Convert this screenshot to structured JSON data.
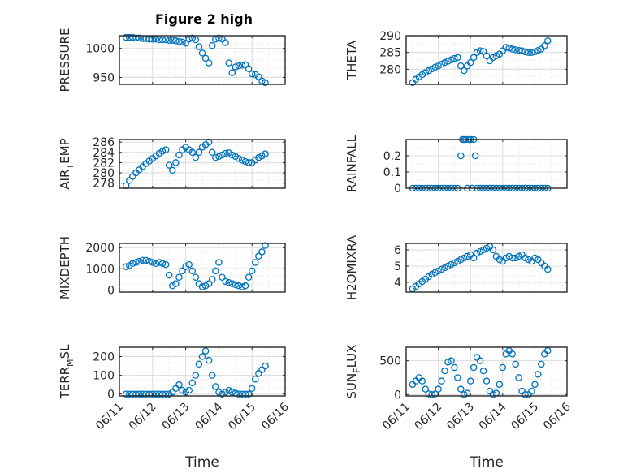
{
  "figure": {
    "title": "Figure 2 high"
  },
  "colors": {
    "marker": "#0072BD",
    "axis": "#262626",
    "grid": "#dcdcdc"
  },
  "chart_data": [
    {
      "id": "pressure",
      "type": "scatter",
      "title": "Figure 2 high",
      "ylabel": "PRESSURE",
      "xlabel": "",
      "xlim": [
        0,
        5
      ],
      "ylim": [
        938,
        1022
      ],
      "yticks": [
        950,
        1000
      ],
      "xticks": [
        0,
        1,
        2,
        3,
        4,
        5
      ],
      "xticklabels": [],
      "grid": true,
      "marker": "circle",
      "x": [
        0.2,
        0.3,
        0.4,
        0.5,
        0.6,
        0.7,
        0.8,
        0.9,
        1.0,
        1.1,
        1.2,
        1.3,
        1.4,
        1.5,
        1.6,
        1.7,
        1.8,
        1.9,
        2.0,
        2.1,
        2.2,
        2.3,
        2.4,
        2.5,
        2.6,
        2.7,
        2.8,
        2.9,
        3.0,
        3.1,
        3.2,
        3.3,
        3.4,
        3.5,
        3.6,
        3.7,
        3.8,
        3.9,
        4.0,
        4.1,
        4.2,
        4.3,
        4.4
      ],
      "y": [
        1019,
        1019,
        1019,
        1018,
        1018,
        1017,
        1017,
        1016,
        1016,
        1016,
        1015,
        1015,
        1015,
        1014,
        1014,
        1013,
        1012,
        1011,
        1009,
        1016,
        1018,
        1015,
        1003,
        992,
        983,
        975,
        1005,
        1016,
        1018,
        1016,
        1010,
        975,
        958,
        968,
        970,
        971,
        972,
        965,
        956,
        955,
        951,
        944,
        941
      ]
    },
    {
      "id": "theta",
      "type": "scatter",
      "ylabel": "THETA",
      "xlabel": "",
      "xlim": [
        0,
        5
      ],
      "ylim": [
        275.5,
        290
      ],
      "yticks": [
        280,
        285,
        290
      ],
      "xticks": [
        0,
        1,
        2,
        3,
        4,
        5
      ],
      "xticklabels": [],
      "grid": true,
      "marker": "circle",
      "x": [
        0.2,
        0.3,
        0.4,
        0.5,
        0.6,
        0.7,
        0.8,
        0.9,
        1.0,
        1.1,
        1.2,
        1.3,
        1.4,
        1.5,
        1.6,
        1.7,
        1.8,
        1.9,
        2.0,
        2.1,
        2.2,
        2.3,
        2.4,
        2.5,
        2.6,
        2.7,
        2.8,
        2.9,
        3.0,
        3.1,
        3.2,
        3.3,
        3.4,
        3.5,
        3.6,
        3.7,
        3.8,
        3.9,
        4.0,
        4.1,
        4.2,
        4.3,
        4.4
      ],
      "y": [
        276,
        277,
        277.7,
        278.4,
        279,
        279.6,
        280.1,
        280.6,
        281,
        281.5,
        282,
        282.4,
        282.8,
        283.2,
        283.5,
        281,
        279.6,
        281,
        282,
        283.5,
        285,
        285.5,
        285.3,
        284,
        282.5,
        283.5,
        284,
        284.5,
        285.5,
        286.5,
        286.3,
        286,
        285.8,
        285.6,
        285.5,
        285.2,
        285,
        285,
        285.2,
        285.6,
        286,
        287,
        288.5
      ]
    },
    {
      "id": "air_temp",
      "type": "scatter",
      "ylabel": "AIR_TEMP",
      "xlabel": "",
      "xlim": [
        0,
        5
      ],
      "ylim": [
        277,
        286.5
      ],
      "yticks": [
        278,
        280,
        282,
        284,
        286
      ],
      "xticks": [
        0,
        1,
        2,
        3,
        4,
        5
      ],
      "xticklabels": [],
      "grid": true,
      "marker": "circle",
      "x": [
        0.2,
        0.3,
        0.4,
        0.5,
        0.6,
        0.7,
        0.8,
        0.9,
        1.0,
        1.1,
        1.2,
        1.3,
        1.4,
        1.5,
        1.6,
        1.7,
        1.8,
        1.9,
        2.0,
        2.1,
        2.2,
        2.3,
        2.4,
        2.5,
        2.6,
        2.7,
        2.8,
        2.9,
        3.0,
        3.1,
        3.2,
        3.3,
        3.4,
        3.5,
        3.6,
        3.7,
        3.8,
        3.9,
        4.0,
        4.1,
        4.2,
        4.3,
        4.4
      ],
      "y": [
        277.5,
        278.5,
        279.3,
        280,
        280.6,
        281.2,
        281.8,
        282.3,
        282.8,
        283.3,
        283.8,
        284.2,
        284.5,
        281.5,
        280.5,
        282,
        283.5,
        284.5,
        285,
        284.5,
        284,
        283,
        284,
        285,
        285.5,
        286,
        284,
        283,
        283.2,
        283.5,
        283.8,
        283.9,
        283.5,
        283.2,
        282.8,
        282.5,
        282.2,
        282,
        282,
        282.5,
        283,
        283.3,
        283.7
      ]
    },
    {
      "id": "rainfall",
      "type": "scatter",
      "ylabel": "RAINFALL",
      "xlabel": "",
      "xlim": [
        0,
        5
      ],
      "ylim": [
        0,
        0.3
      ],
      "yticks": [
        0,
        0.1,
        0.2
      ],
      "xticks": [
        0,
        1,
        2,
        3,
        4,
        5
      ],
      "xticklabels": [],
      "grid": true,
      "marker": "circle",
      "x": [
        0.2,
        0.3,
        0.4,
        0.5,
        0.6,
        0.7,
        0.8,
        0.9,
        1.0,
        1.1,
        1.2,
        1.3,
        1.4,
        1.5,
        1.6,
        1.7,
        1.75,
        1.8,
        1.85,
        1.9,
        1.95,
        2.0,
        2.05,
        2.1,
        2.15,
        2.2,
        2.3,
        2.4,
        2.5,
        2.6,
        2.7,
        2.8,
        2.9,
        3.0,
        3.1,
        3.2,
        3.3,
        3.4,
        3.5,
        3.6,
        3.7,
        3.8,
        3.9,
        4.0,
        4.1,
        4.2,
        4.3,
        4.4
      ],
      "y": [
        0,
        0,
        0,
        0,
        0,
        0,
        0,
        0,
        0,
        0,
        0,
        0,
        0,
        0,
        0,
        0.2,
        0.3,
        0.3,
        0.3,
        0,
        0.3,
        0.3,
        0,
        0.3,
        0.2,
        0,
        0,
        0,
        0,
        0,
        0,
        0,
        0,
        0,
        0,
        0,
        0,
        0,
        0,
        0,
        0,
        0,
        0,
        0,
        0,
        0,
        0,
        0
      ]
    },
    {
      "id": "mixdepth",
      "type": "scatter",
      "ylabel": "MIXDEPTH",
      "xlabel": "",
      "xlim": [
        0,
        5
      ],
      "ylim": [
        -100,
        2200
      ],
      "yticks": [
        0,
        1000,
        2000
      ],
      "xticks": [
        0,
        1,
        2,
        3,
        4,
        5
      ],
      "xticklabels": [],
      "grid": true,
      "marker": "circle",
      "x": [
        0.2,
        0.3,
        0.4,
        0.5,
        0.6,
        0.7,
        0.8,
        0.9,
        1.0,
        1.1,
        1.2,
        1.3,
        1.4,
        1.5,
        1.6,
        1.7,
        1.8,
        1.9,
        2.0,
        2.1,
        2.2,
        2.3,
        2.4,
        2.5,
        2.6,
        2.7,
        2.8,
        2.9,
        3.0,
        3.1,
        3.2,
        3.3,
        3.4,
        3.5,
        3.6,
        3.7,
        3.8,
        3.9,
        4.0,
        4.1,
        4.2,
        4.3,
        4.4
      ],
      "y": [
        1100,
        1150,
        1250,
        1300,
        1350,
        1400,
        1400,
        1350,
        1300,
        1250,
        1300,
        1250,
        1200,
        700,
        200,
        300,
        600,
        900,
        1100,
        1200,
        900,
        600,
        300,
        150,
        200,
        300,
        500,
        900,
        1300,
        600,
        400,
        350,
        300,
        250,
        200,
        150,
        200,
        600,
        900,
        1300,
        1600,
        1800,
        2100
      ]
    },
    {
      "id": "h2omixra",
      "type": "scatter",
      "ylabel": "H2OMIXRA",
      "xlabel": "",
      "xlim": [
        0,
        5
      ],
      "ylim": [
        3.4,
        6.4
      ],
      "yticks": [
        4,
        5,
        6
      ],
      "xticks": [
        0,
        1,
        2,
        3,
        4,
        5
      ],
      "xticklabels": [],
      "grid": true,
      "marker": "circle",
      "x": [
        0.2,
        0.3,
        0.4,
        0.5,
        0.6,
        0.7,
        0.8,
        0.9,
        1.0,
        1.1,
        1.2,
        1.3,
        1.4,
        1.5,
        1.6,
        1.7,
        1.8,
        1.9,
        2.0,
        2.1,
        2.2,
        2.3,
        2.4,
        2.5,
        2.6,
        2.7,
        2.8,
        2.9,
        3.0,
        3.1,
        3.2,
        3.3,
        3.4,
        3.5,
        3.6,
        3.7,
        3.8,
        3.9,
        4.0,
        4.1,
        4.2,
        4.3,
        4.4
      ],
      "y": [
        3.6,
        3.75,
        3.9,
        4.05,
        4.2,
        4.35,
        4.5,
        4.6,
        4.7,
        4.8,
        4.9,
        5.0,
        5.1,
        5.2,
        5.3,
        5.4,
        5.5,
        5.6,
        5.7,
        5.5,
        5.8,
        5.9,
        6.0,
        6.1,
        6.2,
        6.0,
        5.6,
        5.4,
        5.3,
        5.5,
        5.6,
        5.5,
        5.5,
        5.6,
        5.7,
        5.5,
        5.4,
        5.3,
        5.5,
        5.4,
        5.2,
        5.0,
        4.8
      ]
    },
    {
      "id": "terr_msl",
      "type": "scatter",
      "ylabel": "TERR_MSL",
      "xlabel": "Time",
      "xlim": [
        0,
        5
      ],
      "ylim": [
        -10,
        250
      ],
      "yticks": [
        0,
        100,
        200
      ],
      "xticks": [
        0,
        1,
        2,
        3,
        4,
        5
      ],
      "xticklabels": [
        "06/11",
        "06/12",
        "06/13",
        "06/14",
        "06/15",
        "06/16"
      ],
      "grid": true,
      "marker": "circle",
      "x": [
        0.2,
        0.3,
        0.4,
        0.5,
        0.6,
        0.7,
        0.8,
        0.9,
        1.0,
        1.1,
        1.2,
        1.3,
        1.4,
        1.5,
        1.6,
        1.7,
        1.8,
        1.9,
        2.0,
        2.1,
        2.2,
        2.3,
        2.4,
        2.5,
        2.6,
        2.7,
        2.8,
        2.9,
        3.0,
        3.1,
        3.2,
        3.3,
        3.4,
        3.5,
        3.6,
        3.7,
        3.8,
        3.9,
        4.0,
        4.1,
        4.2,
        4.3,
        4.4
      ],
      "y": [
        0,
        0,
        0,
        0,
        0,
        0,
        0,
        0,
        0,
        0,
        0,
        0,
        0,
        0,
        10,
        30,
        50,
        20,
        10,
        20,
        60,
        100,
        160,
        200,
        230,
        180,
        100,
        40,
        10,
        0,
        10,
        20,
        10,
        5,
        0,
        0,
        0,
        0,
        30,
        80,
        110,
        130,
        150
      ]
    },
    {
      "id": "sun_flux",
      "type": "scatter",
      "ylabel": "SUN_FLUX",
      "xlabel": "Time",
      "xlim": [
        0,
        5
      ],
      "ylim": [
        -20,
        700
      ],
      "yticks": [
        0,
        500
      ],
      "xticks": [
        0,
        1,
        2,
        3,
        4,
        5
      ],
      "xticklabels": [
        "06/11",
        "06/12",
        "06/13",
        "06/14",
        "06/15",
        "06/16"
      ],
      "grid": true,
      "marker": "circle",
      "x": [
        0.2,
        0.3,
        0.4,
        0.5,
        0.6,
        0.7,
        0.8,
        0.9,
        1.0,
        1.1,
        1.2,
        1.3,
        1.4,
        1.5,
        1.6,
        1.7,
        1.8,
        1.9,
        2.0,
        2.1,
        2.2,
        2.3,
        2.4,
        2.5,
        2.6,
        2.7,
        2.8,
        2.9,
        3.0,
        3.1,
        3.2,
        3.3,
        3.4,
        3.5,
        3.6,
        3.7,
        3.8,
        3.9,
        4.0,
        4.1,
        4.2,
        4.3,
        4.4
      ],
      "y": [
        150,
        200,
        250,
        200,
        80,
        10,
        0,
        10,
        80,
        200,
        350,
        480,
        500,
        400,
        250,
        80,
        0,
        20,
        200,
        400,
        550,
        500,
        350,
        200,
        50,
        0,
        20,
        150,
        400,
        600,
        650,
        600,
        450,
        250,
        50,
        0,
        0,
        50,
        150,
        300,
        450,
        600,
        650
      ]
    }
  ]
}
